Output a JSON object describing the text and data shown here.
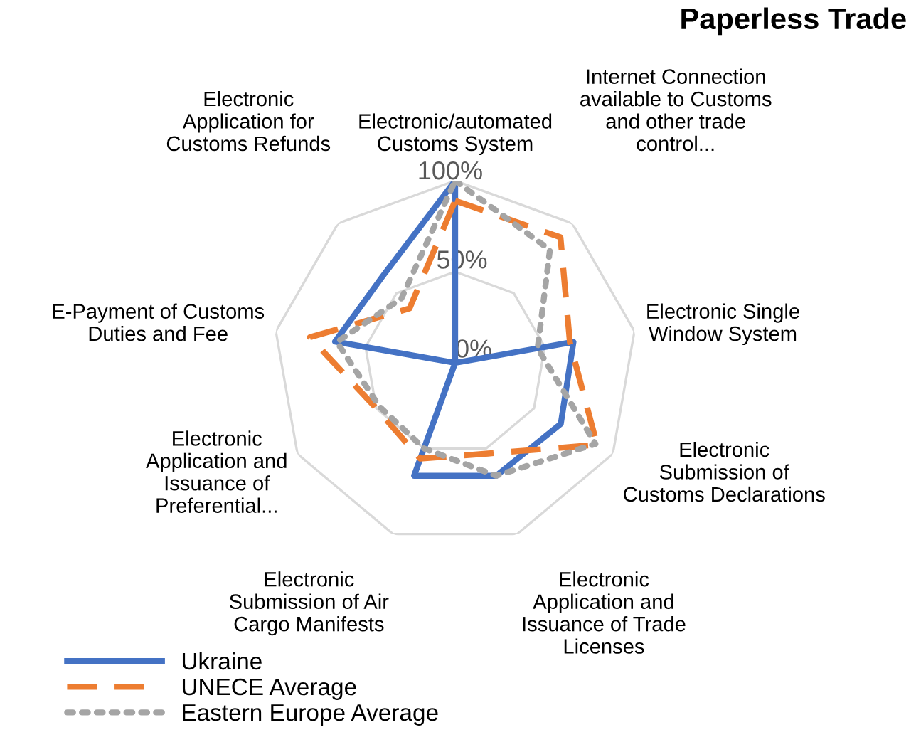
{
  "chart_data": {
    "type": "radar",
    "title": "Paperless Trade",
    "categories": [
      "Electronic/automated Customs System",
      "Internet Connection available to Customs and other trade control...",
      "Electronic Single Window System",
      "Electronic Submission of Customs Declarations",
      "Electronic Application and Issuance of Trade Licenses",
      "Electronic Submission of Air Cargo Manifests",
      "Electronic Application and Issuance of Preferential...",
      "E-Payment of Customs Duties and Fee",
      "Electronic Application for Customs Refunds"
    ],
    "series": [
      {
        "name": "Ukraine",
        "color": "#4472c4",
        "line_style": "solid",
        "values": [
          100,
          0,
          66,
          67,
          66,
          66,
          0,
          67,
          62
        ]
      },
      {
        "name": "UNECE Average",
        "color": "#ed7d31",
        "line_style": "dashed",
        "values": [
          89,
          90,
          64,
          90,
          53,
          56,
          50,
          81,
          39
        ]
      },
      {
        "name": "Eastern Europe Average",
        "color": "#a5a5a5",
        "line_style": "dotted",
        "values": [
          100,
          81,
          46,
          89,
          66,
          50,
          48,
          66,
          46
        ]
      }
    ],
    "ylim": [
      0,
      100
    ],
    "yticks": [
      {
        "value": 0,
        "label": "0%"
      },
      {
        "value": 50,
        "label": "50%"
      },
      {
        "value": 100,
        "label": "100%"
      }
    ],
    "grid": true,
    "legend": "bottom left",
    "marker": "none"
  }
}
